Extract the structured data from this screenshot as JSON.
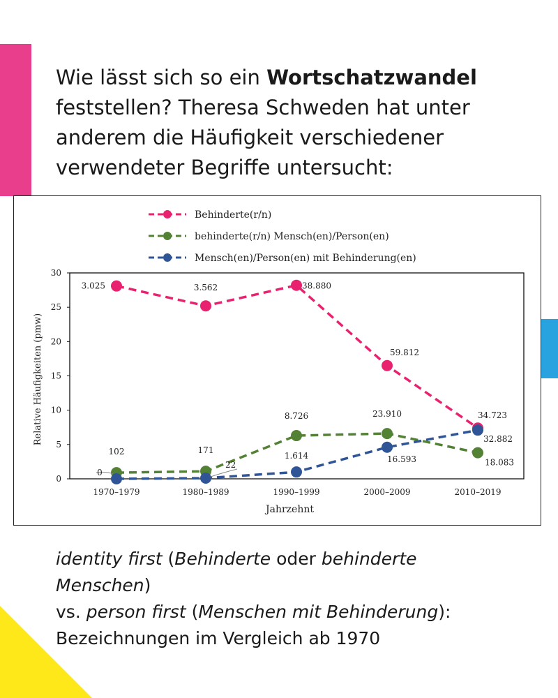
{
  "headline": {
    "prefix": "Wie lässt sich so ein ",
    "bold": "Wortschatzwandel",
    "suffix": " feststellen? Theresa Schweden hat unter anderem die Häufigkeit verschiedener verwendeter Begriffe untersucht:"
  },
  "chart_data": {
    "type": "line",
    "xlabel": "Jahrzehnt",
    "ylabel": "Relative Häufigkeiten (pmw)",
    "ylim": [
      0,
      30
    ],
    "yticks": [
      0,
      5,
      10,
      15,
      20,
      25,
      30
    ],
    "categories": [
      "1970–1979",
      "1980–1989",
      "1990–1999",
      "2000–2009",
      "2010–2019"
    ],
    "grid": false,
    "legend_position": "top",
    "series": [
      {
        "name": "Behinderte(r/n)",
        "color": "#e8226f",
        "style": "dashed",
        "values": [
          28.1,
          25.2,
          28.2,
          16.5,
          7.4
        ],
        "point_labels": [
          "3.025",
          "3.562",
          "38.880",
          "59.812",
          "34.723"
        ]
      },
      {
        "name": "behinderte(r/n) Mensch(en)/Person(en)",
        "color": "#548235",
        "style": "dashed",
        "values": [
          0.9,
          1.1,
          6.3,
          6.6,
          3.8
        ],
        "point_labels": [
          "102",
          "171",
          "8.726",
          "23.910",
          "18.083"
        ]
      },
      {
        "name": "Mensch(en)/Person(en) mit Behinderung(en)",
        "color": "#2f5597",
        "style": "dashed",
        "values": [
          0.0,
          0.1,
          1.0,
          4.6,
          7.1
        ],
        "point_labels": [
          "0",
          "22",
          "1.614",
          "16.593",
          "32.882"
        ]
      }
    ]
  },
  "caption": {
    "line1_italic_a": "identity first",
    "line1_open": " (",
    "line1_italic_b": "Behinderte",
    "line1_oder": " oder ",
    "line1_italic_c": "behinderte Menschen",
    "line1_close": ")",
    "line2_vs": "vs. ",
    "line2_italic_a": "person first",
    "line2_open": " (",
    "line2_italic_b": "Menschen mit Behinderung",
    "line2_close": "):",
    "line3": "Bezeichnungen im Vergleich ab 1970"
  },
  "colors": {
    "accent_pink": "#e83e8c",
    "accent_blue": "#29a3e0",
    "accent_yellow": "#ffe81a"
  }
}
